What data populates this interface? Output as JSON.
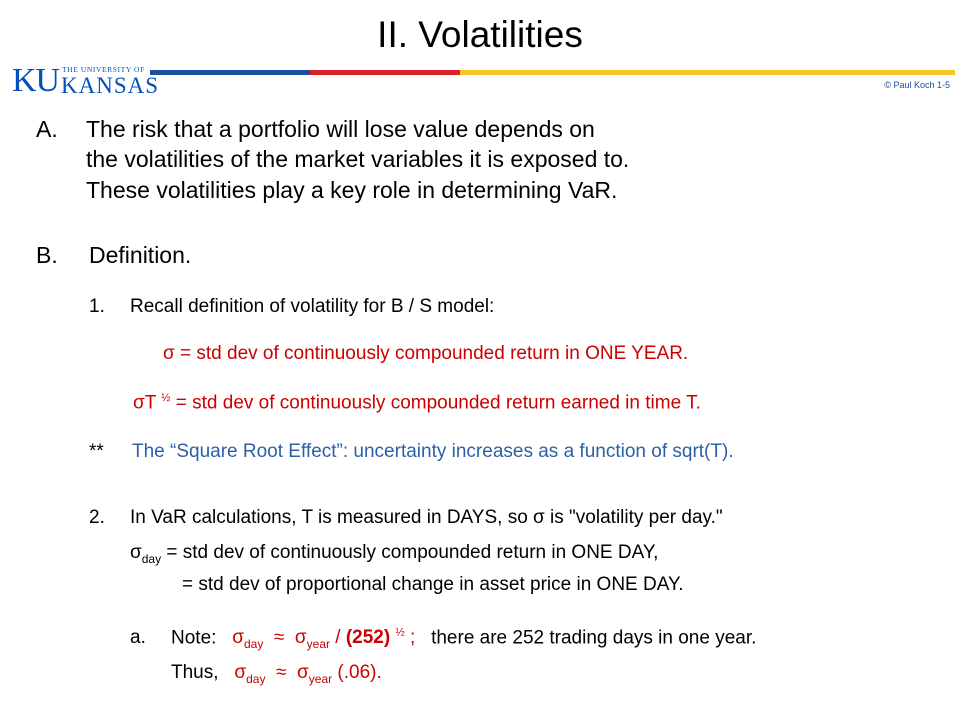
{
  "slide": {
    "title": "II.  Volatilities",
    "copyright": "© Paul Koch 1-5"
  },
  "logo": {
    "ku": "KU",
    "university_line": "THE UNIVERSITY OF",
    "kansas": "KANSAS"
  },
  "colors": {
    "bar_blue": "#1d4fa0",
    "bar_red": "#d8232a",
    "bar_yellow": "#f6c628",
    "red_text": "#cc0000",
    "blue_text": "#2e5fa6"
  },
  "section_a": {
    "marker": "A.",
    "line1": "The risk that a portfolio will lose value depends on",
    "line2": "the  volatilities  of the  market variables  it is exposed to.",
    "line3": "These  volatilities  play a key role in determining VaR."
  },
  "section_b": {
    "marker": "B.",
    "heading": "Definition."
  },
  "item1": {
    "marker": "1.",
    "text": "Recall definition of  volatility  for B / S model:",
    "sigma_def": "σ  =  std dev  of  continuously  compounded   return   in  ONE YEAR.",
    "sigmaT_prefix": "σT",
    "sigmaT_exp": "½",
    "sigmaT_rest": "=  std dev  of  continuously  compounded  return  earned  in time  T.",
    "note_marker": "**",
    "note_text": "The “Square Root Effect”:  uncertainty  increases as a function of  sqrt(T)."
  },
  "item2": {
    "marker": "2.",
    "line1": "In VaR calculations,  T is measured in DAYS,  so  σ  is \"volatility per day.\"",
    "line2_sigma": "σ",
    "line2_sub": "day",
    "line2_rest": " =  std dev  of  continuously compounded return   in  ONE DAY,",
    "line3": "=  std dev  of  proportional change in asset price in  ONE DAY."
  },
  "item2a": {
    "marker": "a.",
    "note_label": "Note:",
    "sigma_day": "σ",
    "sub_day": "day",
    "approx": "≈",
    "sigma_year": "σ",
    "sub_year": "year",
    "div": "/",
    "bold_252": "(252)",
    "exp_half": "½",
    "semi": ";",
    "tail": "there are 252 trading days in one year.",
    "thus_label": "Thus,",
    "thus_val": "(.06)."
  }
}
